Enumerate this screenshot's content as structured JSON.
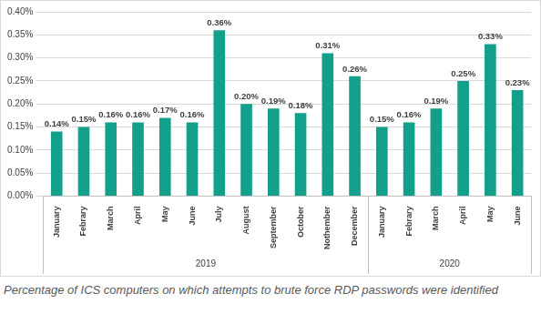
{
  "chart_data": {
    "type": "bar",
    "title": "Percentage of ICS computers on which attempts to brute force RDP passwords were identified",
    "categories": [
      "January",
      "Febrary",
      "March",
      "April",
      "May",
      "June",
      "July",
      "August",
      "September",
      "October",
      "Nothember",
      "December",
      "January",
      "Febrary",
      "March",
      "April",
      "May",
      "June"
    ],
    "values": [
      0.14,
      0.15,
      0.16,
      0.16,
      0.17,
      0.16,
      0.36,
      0.2,
      0.19,
      0.18,
      0.31,
      0.26,
      0.15,
      0.16,
      0.19,
      0.25,
      0.33,
      0.23
    ],
    "value_labels": [
      "0.14%",
      "0.15%",
      "0.16%",
      "0.16%",
      "0.17%",
      "0.16%",
      "0.36%",
      "0.20%",
      "0.19%",
      "0.18%",
      "0.31%",
      "0.26%",
      "0.15%",
      "0.16%",
      "0.19%",
      "0.25%",
      "0.33%",
      "0.23%"
    ],
    "color": "#12a08a",
    "ylim": [
      0,
      0.4
    ],
    "yticks": [
      {
        "value": 0,
        "label": "0.00%"
      },
      {
        "value": 0.05,
        "label": "0.05%"
      },
      {
        "value": 0.1,
        "label": "0.10%"
      },
      {
        "value": 0.15,
        "label": "0.15%"
      },
      {
        "value": 0.2,
        "label": "0.20%"
      },
      {
        "value": 0.25,
        "label": "0.25%"
      },
      {
        "value": 0.3,
        "label": "0.30%"
      },
      {
        "value": 0.35,
        "label": "0.35%"
      },
      {
        "value": 0.4,
        "label": "0.40%"
      }
    ],
    "grid": true,
    "data_labels": true,
    "x_groups": [
      {
        "label": "2019",
        "count": 12
      },
      {
        "label": "2020",
        "count": 6
      }
    ]
  }
}
